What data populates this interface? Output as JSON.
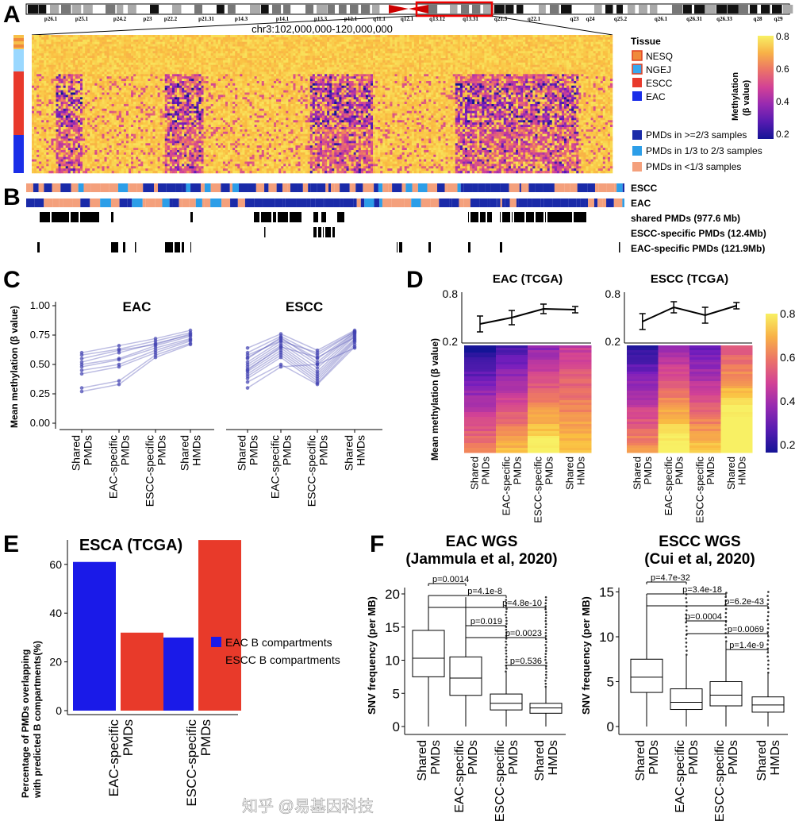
{
  "panel_labels": [
    "A",
    "B",
    "C",
    "D",
    "E",
    "F"
  ],
  "panel_a": {
    "ideogram_bands": [
      "p26.1",
      "p25.1",
      "p24.2",
      "p23",
      "p22.2",
      "p21.31",
      "p14.3",
      "p14.1",
      "p13.3",
      "p12.1",
      "q11.1",
      "q12.1",
      "q13.12",
      "q13.31",
      "q21.3",
      "q22.1",
      "q23",
      "q24",
      "q25.2",
      "q26.1",
      "q26.31",
      "q26.33",
      "q28",
      "q29"
    ],
    "region": "chr3:102,000,000-120,000,000",
    "tissue_legend": {
      "title": "Tissue",
      "items": [
        {
          "label": "NESQ",
          "color": "#f08a3c"
        },
        {
          "label": "NGEJ",
          "color": "#36a8f0"
        },
        {
          "label": "ESCC",
          "color": "#e8392c"
        },
        {
          "label": "EAC",
          "color": "#1a2ee8"
        }
      ]
    },
    "colorbar": {
      "title": "Methylation",
      "subtitle": "(β value)",
      "ticks": [
        "0.8",
        "0.6",
        "0.4",
        "0.2"
      ]
    },
    "pmd_legend": [
      {
        "label": "PMDs in >=2/3 samples",
        "color": "#1a2aa8"
      },
      {
        "label": "PMDs in 1/3 to 2/3 samples",
        "color": "#2c9ee8"
      },
      {
        "label": "PMDs in <1/3 samples",
        "color": "#f4a07c"
      }
    ]
  },
  "panel_b": {
    "tracks": [
      "ESCC",
      "EAC",
      "shared PMDs (977.6 Mb)",
      "ESCC-specific PMDs (12.4Mb)",
      "EAC-specific PMDs (121.9Mb)"
    ]
  },
  "watermark": "知乎 @易基因科技",
  "chart_data": [
    {
      "panel": "C",
      "type": "line",
      "ylabel": "Mean methylation (β value)",
      "ylim": [
        0,
        1
      ],
      "yticks": [
        "0.00",
        "0.25",
        "0.50",
        "0.75",
        "1.00"
      ],
      "categories": [
        "Shared PMDs",
        "EAC-specific PMDs",
        "ESCC-specific PMDs",
        "Shared HMDs"
      ],
      "facets": [
        {
          "title": "EAC",
          "samples": [
            [
              0.6,
              0.66,
              0.72,
              0.79
            ],
            [
              0.58,
              0.63,
              0.7,
              0.77
            ],
            [
              0.52,
              0.6,
              0.68,
              0.75
            ],
            [
              0.5,
              0.55,
              0.66,
              0.74
            ],
            [
              0.48,
              0.54,
              0.64,
              0.72
            ],
            [
              0.45,
              0.5,
              0.62,
              0.71
            ],
            [
              0.42,
              0.48,
              0.6,
              0.7
            ],
            [
              0.3,
              0.36,
              0.58,
              0.68
            ],
            [
              0.27,
              0.33,
              0.56,
              0.67
            ],
            [
              0.55,
              0.62,
              0.67,
              0.76
            ]
          ]
        },
        {
          "title": "ESCC",
          "samples": [
            [
              0.64,
              0.76,
              0.62,
              0.79
            ],
            [
              0.6,
              0.74,
              0.58,
              0.78
            ],
            [
              0.56,
              0.72,
              0.55,
              0.77
            ],
            [
              0.52,
              0.7,
              0.5,
              0.76
            ],
            [
              0.5,
              0.68,
              0.47,
              0.75
            ],
            [
              0.48,
              0.66,
              0.44,
              0.74
            ],
            [
              0.46,
              0.64,
              0.42,
              0.72
            ],
            [
              0.44,
              0.62,
              0.4,
              0.71
            ],
            [
              0.42,
              0.6,
              0.38,
              0.7
            ],
            [
              0.4,
              0.58,
              0.36,
              0.69
            ],
            [
              0.38,
              0.56,
              0.34,
              0.67
            ],
            [
              0.35,
              0.5,
              0.33,
              0.65
            ],
            [
              0.3,
              0.48,
              0.5,
              0.64
            ],
            [
              0.58,
              0.7,
              0.6,
              0.78
            ],
            [
              0.55,
              0.73,
              0.52,
              0.77
            ],
            [
              0.45,
              0.65,
              0.56,
              0.73
            ]
          ]
        }
      ]
    },
    {
      "panel": "D",
      "type": "heatmap",
      "ylabel": "Mean methylation (β value)",
      "line_ylim": [
        0.2,
        0.8
      ],
      "line_yticks": [
        "0.8",
        "0.2"
      ],
      "colorbar_ticks": [
        "0.8",
        "0.6",
        "0.4",
        "0.2"
      ],
      "categories": [
        "Shared PMDs",
        "EAC-specific PMDs",
        "ESCC-specific PMDs",
        "Shared HMDs"
      ],
      "facets": [
        {
          "title": "EAC (TCGA)",
          "mean": [
            0.42,
            0.5,
            0.61,
            0.6
          ],
          "err": [
            0.1,
            0.09,
            0.06,
            0.04
          ]
        },
        {
          "title": "ESCC (TCGA)",
          "mean": [
            0.45,
            0.63,
            0.53,
            0.65
          ],
          "err": [
            0.1,
            0.07,
            0.1,
            0.04
          ]
        }
      ]
    },
    {
      "panel": "E",
      "type": "bar",
      "title": "ESCA (TCGA)",
      "ylabel": "Percentage of PMDs overlapping",
      "ylabel2": "with predicted B compartments(%)",
      "ylim": [
        0,
        70
      ],
      "yticks": [
        "0",
        "20",
        "40",
        "60"
      ],
      "categories": [
        "EAC-specific PMDs",
        "ESCC-specific PMDs"
      ],
      "series": [
        {
          "name": "EAC B compartments",
          "color": "#1a1ae8",
          "values": [
            61,
            30
          ]
        },
        {
          "name": "ESCC B compartments",
          "color": "#e83a2a",
          "values": [
            32,
            70
          ]
        }
      ]
    },
    {
      "panel": "F",
      "type": "box",
      "ylabel": "SNV frequency (per MB)",
      "categories": [
        "Shared PMDs",
        "EAC-specific PMDs",
        "ESCC-specific PMDs",
        "Shared HMDs"
      ],
      "facets": [
        {
          "title": "EAC WGS",
          "subtitle": "(Jammula et al, 2020)",
          "ylim": [
            0,
            21
          ],
          "yticks": [
            "0",
            "5",
            "10",
            "15",
            "20"
          ],
          "boxes": [
            {
              "min": 0,
              "q1": 7.5,
              "median": 10.3,
              "q3": 14.5,
              "max": 19.5,
              "outlier_max": null
            },
            {
              "min": 0,
              "q1": 4.7,
              "median": 7.3,
              "q3": 10.5,
              "max": 19.5,
              "outlier_max": null
            },
            {
              "min": 0,
              "q1": 2.5,
              "median": 3.5,
              "q3": 4.9,
              "max": 8.3,
              "outlier_max": 19.5
            },
            {
              "min": 0,
              "q1": 2,
              "median": 2.8,
              "q3": 3.5,
              "max": 6,
              "outlier_max": 19.5
            }
          ],
          "pvalues": [
            {
              "label": "p=0.0014",
              "from": 0,
              "to": 1
            },
            {
              "label": "p=4.1e-8",
              "from": 0,
              "to": 2
            },
            {
              "label": "p=4.8e-10",
              "from": 0,
              "to": 3
            },
            {
              "label": "p=0.019",
              "from": 1,
              "to": 2
            },
            {
              "label": "p=0.0023",
              "from": 1,
              "to": 3
            },
            {
              "label": "p=0.536",
              "from": 2,
              "to": 3
            }
          ]
        },
        {
          "title": "ESCC WGS",
          "subtitle": "(Cui et al, 2020)",
          "ylim": [
            0,
            16
          ],
          "yticks": [
            "0",
            "5",
            "10",
            "15"
          ],
          "boxes": [
            {
              "min": 0,
              "q1": 3.8,
              "median": 5.5,
              "q3": 7.5,
              "max": 14.5,
              "outlier_max": null
            },
            {
              "min": 0,
              "q1": 1.9,
              "median": 2.7,
              "q3": 4.2,
              "max": 8,
              "outlier_max": 15
            },
            {
              "min": 0,
              "q1": 2.3,
              "median": 3.5,
              "q3": 5,
              "max": 9.5,
              "outlier_max": 15
            },
            {
              "min": 0,
              "q1": 1.6,
              "median": 2.4,
              "q3": 3.3,
              "max": 6,
              "outlier_max": 15
            }
          ],
          "pvalues": [
            {
              "label": "p=4.7e-32",
              "from": 0,
              "to": 1
            },
            {
              "label": "p=3.4e-18",
              "from": 0,
              "to": 2
            },
            {
              "label": "p=6.2e-43",
              "from": 0,
              "to": 3
            },
            {
              "label": "p=0.0004",
              "from": 1,
              "to": 2
            },
            {
              "label": "p=0.0069",
              "from": 1,
              "to": 3
            },
            {
              "label": "p=1.4e-9",
              "from": 2,
              "to": 3
            }
          ]
        }
      ]
    }
  ]
}
